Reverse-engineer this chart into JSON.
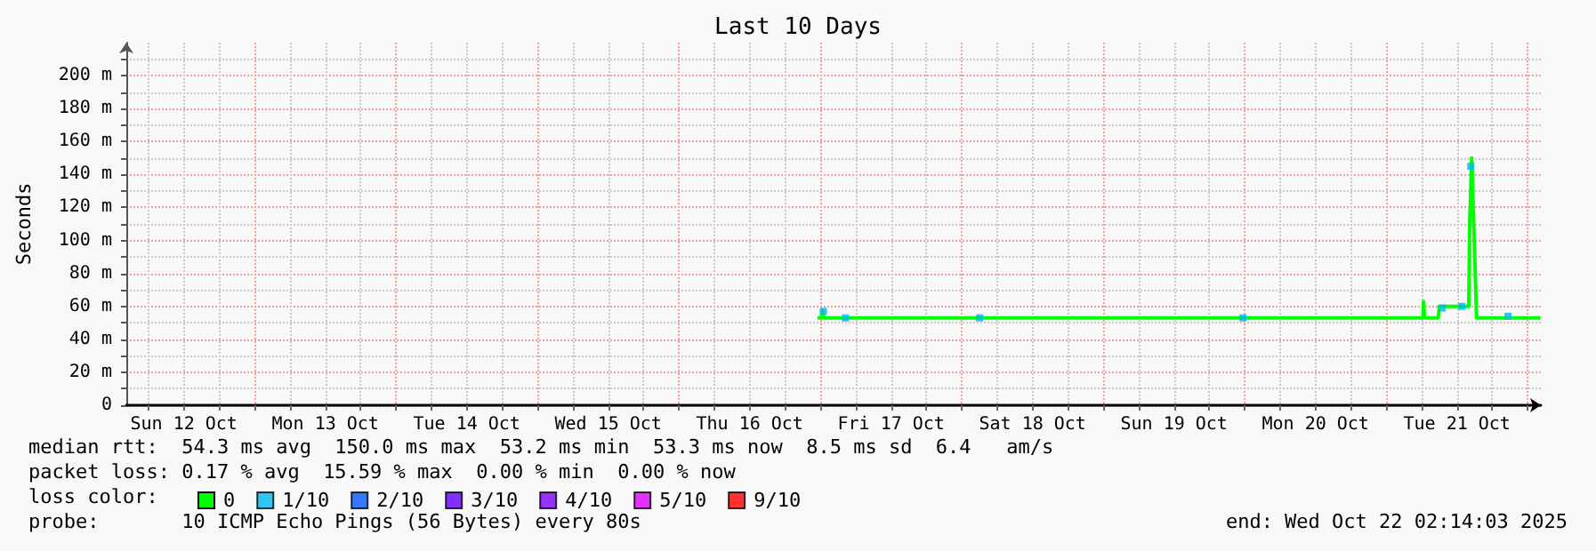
{
  "chart_data": {
    "type": "line",
    "title": "Last 10 Days",
    "ylabel": "Seconds",
    "xlim": [
      "2025-10-12T02:14",
      "2025-10-22T02:14"
    ],
    "xticks": [
      {
        "value": "2025-10-12T06:00",
        "label": null
      },
      {
        "value": "2025-10-12T12:00",
        "label": "Sun 12 Oct"
      },
      {
        "value": "2025-10-12T18:00",
        "label": null
      },
      {
        "value": "2025-10-13T00:00",
        "label": null
      },
      {
        "value": "2025-10-13T06:00",
        "label": null
      },
      {
        "value": "2025-10-13T12:00",
        "label": "Mon 13 Oct"
      },
      {
        "value": "2025-10-13T18:00",
        "label": null
      },
      {
        "value": "2025-10-14T00:00",
        "label": null
      },
      {
        "value": "2025-10-14T06:00",
        "label": null
      },
      {
        "value": "2025-10-14T12:00",
        "label": "Tue 14 Oct"
      },
      {
        "value": "2025-10-14T18:00",
        "label": null
      },
      {
        "value": "2025-10-15T00:00",
        "label": null
      },
      {
        "value": "2025-10-15T06:00",
        "label": null
      },
      {
        "value": "2025-10-15T12:00",
        "label": "Wed 15 Oct"
      },
      {
        "value": "2025-10-15T18:00",
        "label": null
      },
      {
        "value": "2025-10-16T00:00",
        "label": null
      },
      {
        "value": "2025-10-16T06:00",
        "label": null
      },
      {
        "value": "2025-10-16T12:00",
        "label": "Thu 16 Oct"
      },
      {
        "value": "2025-10-16T18:00",
        "label": null
      },
      {
        "value": "2025-10-17T00:00",
        "label": null
      },
      {
        "value": "2025-10-17T06:00",
        "label": null
      },
      {
        "value": "2025-10-17T12:00",
        "label": "Fri 17 Oct"
      },
      {
        "value": "2025-10-17T18:00",
        "label": null
      },
      {
        "value": "2025-10-18T00:00",
        "label": null
      },
      {
        "value": "2025-10-18T06:00",
        "label": null
      },
      {
        "value": "2025-10-18T12:00",
        "label": "Sat 18 Oct"
      },
      {
        "value": "2025-10-18T18:00",
        "label": null
      },
      {
        "value": "2025-10-19T00:00",
        "label": null
      },
      {
        "value": "2025-10-19T06:00",
        "label": null
      },
      {
        "value": "2025-10-19T12:00",
        "label": "Sun 19 Oct"
      },
      {
        "value": "2025-10-19T18:00",
        "label": null
      },
      {
        "value": "2025-10-20T00:00",
        "label": null
      },
      {
        "value": "2025-10-20T06:00",
        "label": null
      },
      {
        "value": "2025-10-20T12:00",
        "label": "Mon 20 Oct"
      },
      {
        "value": "2025-10-20T18:00",
        "label": null
      },
      {
        "value": "2025-10-21T00:00",
        "label": null
      },
      {
        "value": "2025-10-21T06:00",
        "label": null
      },
      {
        "value": "2025-10-21T12:00",
        "label": "Tue 21 Oct"
      },
      {
        "value": "2025-10-21T18:00",
        "label": null
      },
      {
        "value": "2025-10-22T00:00",
        "label": null
      }
    ],
    "ylim": [
      0,
      220
    ],
    "yticks": [
      {
        "value": 0,
        "label": "0"
      },
      {
        "value": 10,
        "label": null
      },
      {
        "value": 20,
        "label": "20 m"
      },
      {
        "value": 30,
        "label": null
      },
      {
        "value": 40,
        "label": "40 m"
      },
      {
        "value": 50,
        "label": null
      },
      {
        "value": 60,
        "label": "60 m"
      },
      {
        "value": 70,
        "label": null
      },
      {
        "value": 80,
        "label": "80 m"
      },
      {
        "value": 90,
        "label": null
      },
      {
        "value": 100,
        "label": "100 m"
      },
      {
        "value": 110,
        "label": null
      },
      {
        "value": 120,
        "label": "120 m"
      },
      {
        "value": 130,
        "label": null
      },
      {
        "value": 140,
        "label": "140 m"
      },
      {
        "value": 150,
        "label": null
      },
      {
        "value": 160,
        "label": "160 m"
      },
      {
        "value": 170,
        "label": null
      },
      {
        "value": 180,
        "label": "180 m"
      },
      {
        "value": 190,
        "label": null
      },
      {
        "value": 200,
        "label": "200 m"
      },
      {
        "value": 210,
        "label": null
      }
    ],
    "grid": true,
    "legend": "bottom",
    "legend_title": "loss color:",
    "series": [
      {
        "name": "0",
        "marker": "none",
        "color": "#00ff00",
        "x": [
          "2025-10-16T23:30",
          "2025-10-17T00:15",
          "2025-10-17T00:20",
          "2025-10-17T00:40",
          "2025-10-21T06:15",
          "2025-10-21T06:20",
          "2025-10-21T06:30",
          "2025-10-21T08:50",
          "2025-10-21T09:00",
          "2025-10-21T14:00",
          "2025-10-21T14:10",
          "2025-10-21T14:30",
          "2025-10-21T15:20",
          "2025-10-22T02:10"
        ],
        "values": [
          53,
          53,
          57,
          53,
          53,
          63,
          53,
          53,
          60,
          60,
          110,
          150,
          53,
          53
        ]
      },
      {
        "name": "1/10",
        "type": "scatter",
        "marker": "square",
        "color": "#00b8f0",
        "x": [
          "2025-10-17T00:30",
          "2025-10-17T04:15",
          "2025-10-18T03:00",
          "2025-10-19T23:40",
          "2025-10-21T09:30",
          "2025-10-21T12:50",
          "2025-10-21T14:20",
          "2025-10-21T20:40"
        ],
        "values": [
          57,
          53,
          53,
          53,
          59,
          60,
          145,
          54
        ]
      },
      {
        "name": "2/10",
        "type": "scatter",
        "marker": "square",
        "color": "#0059ff"
      },
      {
        "name": "3/10",
        "type": "scatter",
        "marker": "square",
        "color": "#5e00ff"
      },
      {
        "name": "4/10",
        "type": "scatter",
        "marker": "square",
        "color": "#7e00ff"
      },
      {
        "name": "5/10",
        "type": "scatter",
        "marker": "square",
        "color": "#dd00ff"
      },
      {
        "name": "9/10",
        "type": "scatter",
        "marker": "square",
        "color": "#ff0000"
      }
    ],
    "annotations": [
      "median rtt:  54.3 ms avg  150.0 ms max  53.2 ms min  53.3 ms now  8.5 ms sd  6.4   am/s",
      "packet loss: 0.17 % avg  15.59 % max  0.00 % min  0.00 % now",
      "probe:       10 ICMP Echo Pings (56 Bytes) every 80s",
      "end: Wed Oct 22 02:14:03 2025"
    ]
  }
}
